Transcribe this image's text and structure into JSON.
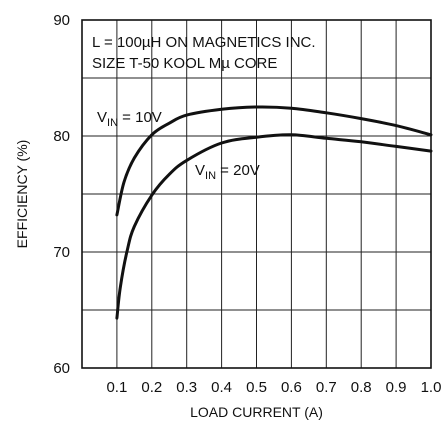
{
  "chart_data": {
    "type": "line",
    "title": "",
    "xlabel": "LOAD CURRENT (A)",
    "ylabel": "EFFICIENCY (%)",
    "xlim": [
      0,
      1.0
    ],
    "ylim": [
      60,
      90
    ],
    "x_ticks": [
      "0.1",
      "0.2",
      "0.3",
      "0.4",
      "0.5",
      "0.6",
      "0.7",
      "0.8",
      "0.9",
      "1.0"
    ],
    "y_ticks": [
      "60",
      "70",
      "80",
      "90"
    ],
    "grid": true,
    "annotation": [
      "L = 100µH ON MAGNETICS INC.",
      "SIZE T-50 KOOL Mµ CORE"
    ],
    "series": [
      {
        "label_main": "V",
        "label_sub": "IN",
        "label_rest": " = 10V",
        "x": [
          0.1,
          0.12,
          0.15,
          0.2,
          0.25,
          0.3,
          0.4,
          0.5,
          0.6,
          0.7,
          0.8,
          0.9,
          1.0
        ],
        "y": [
          73.2,
          76.0,
          78.1,
          80.1,
          81.1,
          81.8,
          82.3,
          82.5,
          82.4,
          82.0,
          81.5,
          80.9,
          80.1
        ]
      },
      {
        "label_main": "V",
        "label_sub": "IN",
        "label_rest": " = 20V",
        "x": [
          0.1,
          0.11,
          0.13,
          0.15,
          0.2,
          0.25,
          0.3,
          0.4,
          0.5,
          0.6,
          0.7,
          0.8,
          0.9,
          1.0
        ],
        "y": [
          64.3,
          67.0,
          70.2,
          72.2,
          74.9,
          76.7,
          77.9,
          79.4,
          79.9,
          80.1,
          79.8,
          79.5,
          79.1,
          78.7
        ]
      }
    ]
  }
}
